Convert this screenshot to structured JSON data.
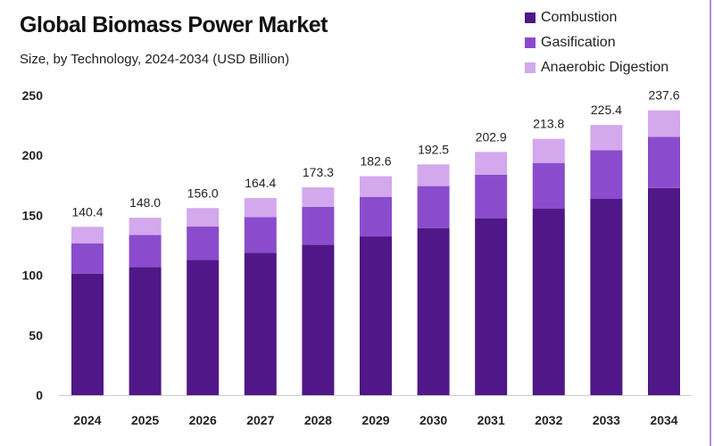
{
  "chart_data": {
    "type": "bar",
    "stacked": true,
    "title": "Global Biomass Power Market",
    "subtitle": "Size, by Technology, 2024-2034 (USD Billion)",
    "xlabel": "",
    "ylabel": "",
    "ylim": [
      0,
      250
    ],
    "yticks": [
      0,
      50,
      100,
      150,
      200,
      250
    ],
    "grid": false,
    "legend_position": "top-right",
    "categories": [
      "2024",
      "2025",
      "2026",
      "2027",
      "2028",
      "2029",
      "2030",
      "2031",
      "2032",
      "2033",
      "2034"
    ],
    "totals": [
      "140.4",
      "148.0",
      "156.0",
      "164.4",
      "173.3",
      "182.6",
      "192.5",
      "202.9",
      "213.8",
      "225.4",
      "237.6"
    ],
    "series": [
      {
        "name": "Combustion",
        "color": "#4f1787",
        "values": [
          101.4,
          106.9,
          112.8,
          118.8,
          125.5,
          132.4,
          139.4,
          147.6,
          155.5,
          163.7,
          172.8
        ]
      },
      {
        "name": "Gasification",
        "color": "#8a4ccc",
        "values": [
          25.3,
          26.8,
          27.8,
          29.8,
          31.5,
          33.0,
          35.0,
          36.2,
          38.2,
          40.6,
          42.7
        ]
      },
      {
        "name": "Anaerobic Digestion",
        "color": "#d3a8ec",
        "values": [
          13.7,
          14.3,
          15.4,
          15.8,
          16.3,
          17.2,
          18.1,
          19.1,
          20.1,
          21.1,
          22.1
        ]
      }
    ]
  }
}
